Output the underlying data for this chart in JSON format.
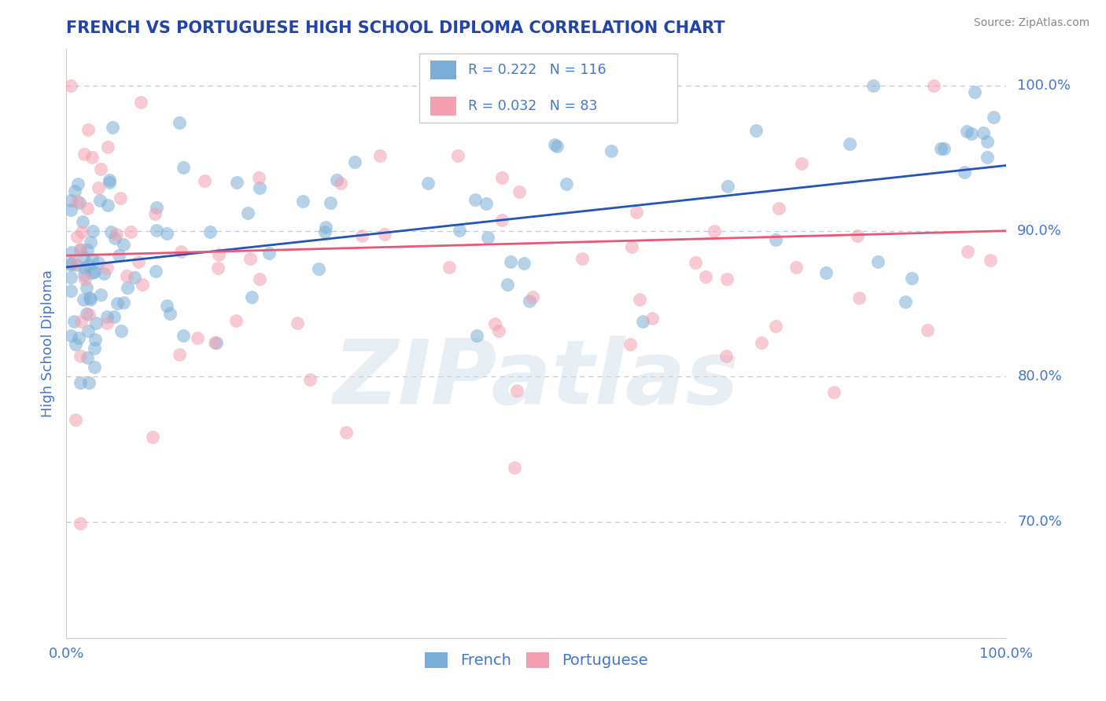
{
  "title": "FRENCH VS PORTUGUESE HIGH SCHOOL DIPLOMA CORRELATION CHART",
  "source": "Source: ZipAtlas.com",
  "ylabel": "High School Diploma",
  "watermark": "ZIPatlas",
  "legend_french_R": "0.222",
  "legend_french_N": "116",
  "legend_portuguese_R": "0.032",
  "legend_portuguese_N": "83",
  "french_color": "#7aaed6",
  "portuguese_color": "#f4a0b0",
  "french_line_color": "#2255bb",
  "portuguese_line_color": "#ee5577",
  "title_color": "#2244aa",
  "axis_color": "#4477cc",
  "grid_color": "#bbccdd",
  "background_color": "#ffffff",
  "ytick_labels": [
    "70.0%",
    "80.0%",
    "90.0%",
    "100.0%"
  ],
  "ytick_values": [
    0.7,
    0.8,
    0.9,
    1.0
  ],
  "ylim": [
    0.62,
    1.025
  ],
  "xlim": [
    0.0,
    1.0
  ],
  "french_line_start_y": 0.875,
  "french_line_end_y": 0.945,
  "portuguese_line_start_y": 0.883,
  "portuguese_line_end_y": 0.9
}
